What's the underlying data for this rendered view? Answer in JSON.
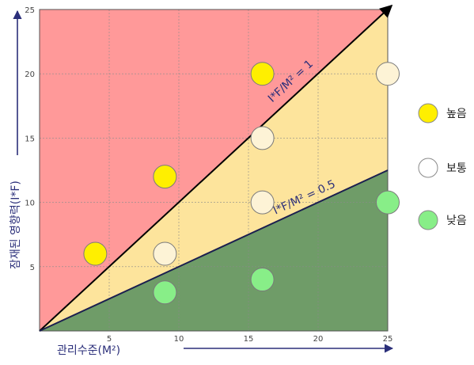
{
  "chart_data": {
    "type": "scatter",
    "xlabel": "관리수준(M²)",
    "ylabel": "잠재된 영향력(I*F)",
    "xlim": [
      0,
      25
    ],
    "ylim": [
      0,
      25
    ],
    "x_ticks": [
      "5",
      "10",
      "15",
      "20",
      "25"
    ],
    "y_ticks": [
      "5",
      "10",
      "15",
      "20",
      "25"
    ],
    "grid": true,
    "regions": [
      {
        "name": "high",
        "condition": "I*F/M² ≥ 1",
        "color": "#ff9999"
      },
      {
        "name": "medium",
        "condition": "0.5 ≤ I*F/M² < 1",
        "color": "#fde49c"
      },
      {
        "name": "low",
        "condition": "I*F/M² < 0.5",
        "color": "#6f9c68"
      }
    ],
    "boundaries": [
      {
        "label": "I*F/M² = 1",
        "slope": 1
      },
      {
        "label": "I*F/M² = 0.5",
        "slope": 0.5
      }
    ],
    "legend": {
      "position": "right",
      "entries": [
        {
          "label": "높음",
          "color": "#ffef00"
        },
        {
          "label": "보통",
          "color": "#ffffff"
        },
        {
          "label": "낮음",
          "color": "#88ee88"
        }
      ]
    },
    "series": [
      {
        "name": "높음",
        "color": "#ffef00",
        "points": [
          [
            4,
            6
          ],
          [
            9,
            12
          ],
          [
            16,
            20
          ]
        ]
      },
      {
        "name": "보통",
        "color": "#fdf3d6",
        "points": [
          [
            9,
            6
          ],
          [
            16,
            15
          ],
          [
            16,
            10
          ],
          [
            25,
            20
          ]
        ]
      },
      {
        "name": "낮음",
        "color": "#88ee88",
        "points": [
          [
            9,
            3
          ],
          [
            16,
            4
          ],
          [
            25,
            10
          ]
        ]
      }
    ]
  }
}
